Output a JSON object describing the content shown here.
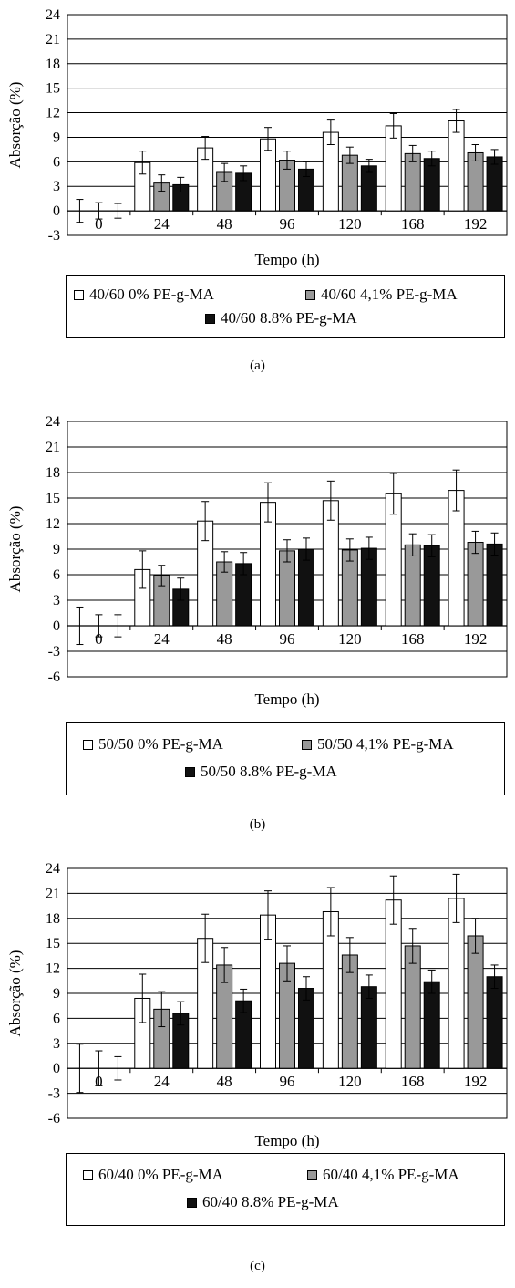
{
  "colors": {
    "series": [
      "#ffffff",
      "#999999",
      "#111111"
    ],
    "stroke": "#000000",
    "grid": "#000000"
  },
  "chart_data": [
    {
      "type": "bar",
      "caption": "(a)",
      "xlabel": "Tempo (h)",
      "ylabel": "Absorção (%)",
      "ylim": [
        -3,
        24
      ],
      "yticks": [
        -3,
        0,
        3,
        6,
        9,
        12,
        15,
        18,
        21,
        24
      ],
      "categories": [
        "0",
        "24",
        "48",
        "96",
        "120",
        "168",
        "192"
      ],
      "grid": true,
      "legend_position": "bottom",
      "series": [
        {
          "name": "40/60 0% PE-g-MA",
          "values": [
            0,
            5.9,
            7.7,
            8.8,
            9.6,
            10.4,
            11.0
          ],
          "errors": [
            1.4,
            1.4,
            1.4,
            1.4,
            1.5,
            1.5,
            1.4
          ]
        },
        {
          "name": "40/60 4,1% PE-g-MA",
          "values": [
            0,
            3.4,
            4.7,
            6.2,
            6.8,
            7.0,
            7.1
          ],
          "errors": [
            1.0,
            1.0,
            1.1,
            1.1,
            1.0,
            1.0,
            1.0
          ]
        },
        {
          "name": "40/60 8.8% PE-g-MA",
          "values": [
            0,
            3.2,
            4.6,
            5.1,
            5.5,
            6.4,
            6.6
          ],
          "errors": [
            0.9,
            0.9,
            0.9,
            0.9,
            0.8,
            0.9,
            0.9
          ]
        }
      ]
    },
    {
      "type": "bar",
      "caption": "(b)",
      "xlabel": "Tempo (h)",
      "ylabel": "Absorção (%)",
      "ylim": [
        -6,
        24
      ],
      "yticks": [
        -6,
        -3,
        0,
        3,
        6,
        9,
        12,
        15,
        18,
        21,
        24
      ],
      "categories": [
        "0",
        "24",
        "48",
        "96",
        "120",
        "168",
        "192"
      ],
      "grid": true,
      "legend_position": "bottom",
      "series": [
        {
          "name": "50/50 0% PE-g-MA",
          "values": [
            0,
            6.6,
            12.3,
            14.5,
            14.7,
            15.5,
            15.9
          ],
          "errors": [
            2.2,
            2.2,
            2.3,
            2.3,
            2.3,
            2.4,
            2.4
          ]
        },
        {
          "name": "50/50 4,1% PE-g-MA",
          "values": [
            0,
            5.9,
            7.5,
            8.8,
            8.9,
            9.5,
            9.8
          ],
          "errors": [
            1.3,
            1.2,
            1.2,
            1.3,
            1.3,
            1.3,
            1.3
          ]
        },
        {
          "name": "50/50 8.8% PE-g-MA",
          "values": [
            0,
            4.3,
            7.3,
            9.0,
            9.1,
            9.4,
            9.6
          ],
          "errors": [
            1.3,
            1.3,
            1.3,
            1.3,
            1.3,
            1.3,
            1.3
          ]
        }
      ]
    },
    {
      "type": "bar",
      "caption": "(c)",
      "xlabel": "Tempo (h)",
      "ylabel": "Absorção (%)",
      "ylim": [
        -6,
        24
      ],
      "yticks": [
        -6,
        -3,
        0,
        3,
        6,
        9,
        12,
        15,
        18,
        21,
        24
      ],
      "categories": [
        "0",
        "24",
        "48",
        "96",
        "120",
        "168",
        "192"
      ],
      "grid": true,
      "legend_position": "bottom",
      "series": [
        {
          "name": "60/40 0% PE-g-MA",
          "values": [
            0,
            8.4,
            15.6,
            18.4,
            18.8,
            20.2,
            20.4
          ],
          "errors": [
            2.9,
            2.9,
            2.9,
            2.9,
            2.9,
            2.9,
            2.9
          ]
        },
        {
          "name": "60/40 4,1% PE-g-MA",
          "values": [
            0,
            7.1,
            12.4,
            12.6,
            13.6,
            14.7,
            15.9
          ],
          "errors": [
            2.1,
            2.1,
            2.1,
            2.1,
            2.1,
            2.1,
            2.1
          ]
        },
        {
          "name": "60/40 8.8% PE-g-MA",
          "values": [
            0,
            6.6,
            8.1,
            9.6,
            9.8,
            10.4,
            11.0
          ],
          "errors": [
            1.4,
            1.4,
            1.4,
            1.4,
            1.4,
            1.4,
            1.4
          ]
        }
      ]
    }
  ]
}
